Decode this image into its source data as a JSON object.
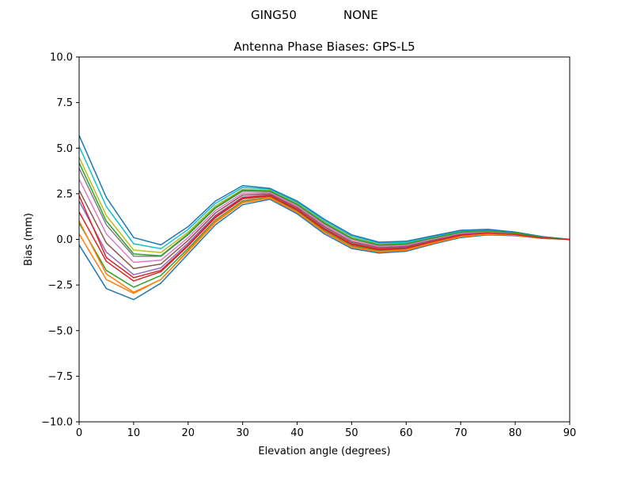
{
  "figure": {
    "suptitle_left": "GING50",
    "suptitle_right": "NONE"
  },
  "chart_data": {
    "type": "line",
    "title": "Antenna Phase Biases: GPS-L5",
    "xlabel": "Elevation angle (degrees)",
    "ylabel": "Bias (mm)",
    "xlim": [
      0,
      90
    ],
    "ylim": [
      -10,
      10
    ],
    "grid": false,
    "legend": "none",
    "xticks": [
      0,
      10,
      20,
      30,
      40,
      50,
      60,
      70,
      80,
      90
    ],
    "xtick_labels": [
      "0",
      "10",
      "20",
      "30",
      "40",
      "50",
      "60",
      "70",
      "80",
      "90"
    ],
    "yticks": [
      10,
      7.5,
      5,
      2.5,
      0,
      -2.5,
      -5,
      -7.5,
      -10
    ],
    "ytick_labels": [
      "10.0",
      "7.5",
      "5.0",
      "2.5",
      "0.0",
      "−2.5",
      "−5.0",
      "−7.5",
      "−10.0"
    ],
    "x": [
      0,
      5,
      10,
      15,
      20,
      25,
      30,
      35,
      40,
      45,
      50,
      55,
      60,
      65,
      70,
      75,
      80,
      85,
      90
    ],
    "colors": [
      "#1f77b4",
      "#ff7f0e",
      "#2ca02c",
      "#d62728",
      "#9467bd",
      "#8c564b",
      "#e377c2",
      "#7f7f7f",
      "#bcbd22",
      "#17becf"
    ],
    "series": [
      {
        "values": [
          -0.3,
          -2.7,
          -3.3,
          -2.4,
          -0.8,
          0.8,
          1.9,
          2.2,
          1.4,
          0.3,
          -0.5,
          -0.75,
          -0.65,
          -0.25,
          0.1,
          0.25,
          0.2,
          0.05,
          0
        ]
      },
      {
        "values": [
          0.3,
          -2.2,
          -2.96,
          -2.19,
          -0.65,
          0.93,
          2.01,
          2.26,
          1.47,
          0.38,
          -0.43,
          -0.69,
          -0.6,
          -0.21,
          0.14,
          0.28,
          0.22,
          0.06,
          0
        ]
      },
      {
        "values": [
          0.9,
          -1.7,
          -2.62,
          -1.98,
          -0.5,
          1.06,
          2.11,
          2.32,
          1.54,
          0.46,
          -0.35,
          -0.63,
          -0.54,
          -0.16,
          0.18,
          0.31,
          0.24,
          0.07,
          0
        ]
      },
      {
        "values": [
          1.5,
          -1.2,
          -2.28,
          -1.77,
          -0.35,
          1.19,
          2.22,
          2.38,
          1.61,
          0.54,
          -0.28,
          -0.57,
          -0.49,
          -0.12,
          0.22,
          0.34,
          0.26,
          0.08,
          0
        ]
      },
      {
        "values": [
          2.1,
          -0.7,
          -1.94,
          -1.56,
          -0.2,
          1.32,
          2.32,
          2.44,
          1.68,
          0.62,
          -0.2,
          -0.51,
          -0.43,
          -0.07,
          0.26,
          0.37,
          0.28,
          0.09,
          0
        ]
      },
      {
        "values": [
          2.7,
          -0.2,
          -1.6,
          -1.35,
          -0.05,
          1.45,
          2.43,
          2.5,
          1.75,
          0.7,
          -0.13,
          -0.45,
          -0.38,
          -0.03,
          0.3,
          0.4,
          0.3,
          0.1,
          0
        ]
      },
      {
        "values": [
          3.3,
          0.3,
          -1.26,
          -1.14,
          0.1,
          1.58,
          2.53,
          2.56,
          1.82,
          0.78,
          -0.05,
          -0.39,
          -0.32,
          0.02,
          0.34,
          0.43,
          0.32,
          0.11,
          0
        ]
      },
      {
        "values": [
          3.9,
          0.8,
          -0.92,
          -0.93,
          0.25,
          1.71,
          2.64,
          2.62,
          1.89,
          0.86,
          0.03,
          -0.33,
          -0.27,
          0.07,
          0.38,
          0.46,
          0.34,
          0.12,
          0
        ]
      },
      {
        "values": [
          4.5,
          1.3,
          -0.58,
          -0.72,
          0.4,
          1.84,
          2.74,
          2.68,
          1.96,
          0.94,
          0.1,
          -0.27,
          -0.21,
          0.11,
          0.42,
          0.49,
          0.36,
          0.13,
          0
        ]
      },
      {
        "values": [
          5.1,
          1.8,
          -0.24,
          -0.51,
          0.55,
          1.97,
          2.85,
          2.74,
          2.03,
          1.02,
          0.18,
          -0.21,
          -0.16,
          0.16,
          0.46,
          0.52,
          0.38,
          0.14,
          0
        ]
      },
      {
        "values": [
          5.7,
          2.3,
          0.1,
          -0.3,
          0.7,
          2.1,
          2.95,
          2.8,
          2.1,
          1.1,
          0.25,
          -0.15,
          -0.1,
          0.2,
          0.5,
          0.55,
          0.4,
          0.15,
          0
        ]
      },
      {
        "values": [
          1.0,
          -1.9,
          -2.9,
          -2.2,
          -0.6,
          1.0,
          2.05,
          2.3,
          1.5,
          0.42,
          -0.4,
          -0.66,
          -0.57,
          -0.18,
          0.16,
          0.3,
          0.23,
          0.06,
          0
        ]
      },
      {
        "values": [
          4.2,
          1.0,
          -0.8,
          -0.9,
          0.3,
          1.75,
          2.7,
          2.65,
          1.92,
          0.9,
          0.06,
          -0.3,
          -0.24,
          0.09,
          0.4,
          0.47,
          0.35,
          0.12,
          0
        ]
      },
      {
        "values": [
          2.4,
          -1.0,
          -2.1,
          -1.7,
          -0.3,
          1.25,
          2.28,
          2.42,
          1.65,
          0.58,
          -0.24,
          -0.54,
          -0.46,
          -0.1,
          0.24,
          0.35,
          0.27,
          0.08,
          0
        ]
      }
    ]
  }
}
